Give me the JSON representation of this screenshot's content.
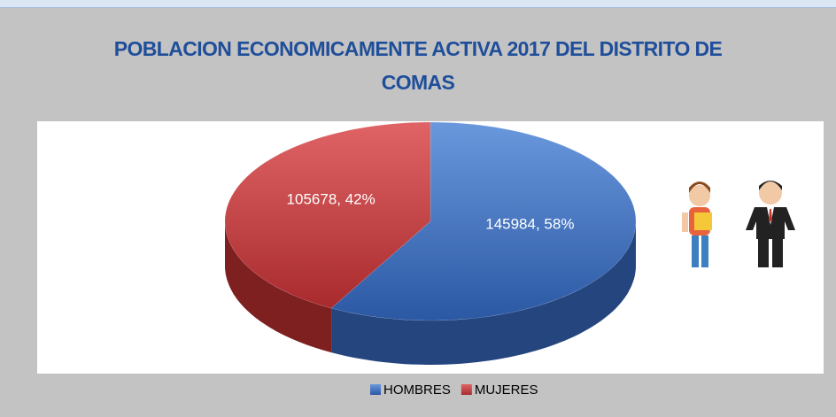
{
  "chart_data": {
    "type": "pie",
    "title": "POBLACION ECONOMICAMENTE ACTIVA 2017 DEL DISTRITO DE COMAS",
    "categories": [
      "HOMBRES",
      "MUJERES"
    ],
    "values": [
      145984,
      105678
    ],
    "value_labels": [
      "145984, 58%",
      "105678, 42%"
    ],
    "colors": [
      "#3a6cbc",
      "#c0393b"
    ],
    "legend": "bottom"
  }
}
